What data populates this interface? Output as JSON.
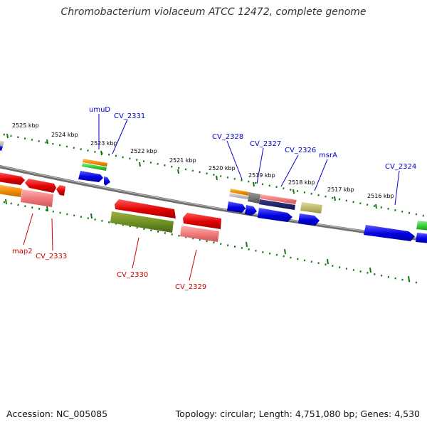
{
  "title": "Chromobacterium violaceum ATCC 12472, complete genome",
  "footer": {
    "accession": "Accession: NC_005085",
    "summary": "Topology: circular; Length: 4,751,080 bp; Genes: 4,530"
  },
  "colors": {
    "forward_label": "#0000cc",
    "reverse_label": "#cc0000",
    "backbone": "#808080",
    "ticks": "#117711"
  },
  "scale": [
    "2525 kbp",
    "2524 kbp",
    "2523 kbp",
    "2522 kbp",
    "2521 kbp",
    "2520 kbp",
    "2519 kbp",
    "2518 kbp",
    "2517 kbp",
    "2516 kbp"
  ],
  "forward_genes": [
    "umuD",
    "CV_2331",
    "CV_2328",
    "CV_2327",
    "CV_2326",
    "msrA",
    "CV_2324"
  ],
  "reverse_genes": [
    "map2",
    "CV_2333",
    "CV_2330",
    "CV_2329"
  ]
}
